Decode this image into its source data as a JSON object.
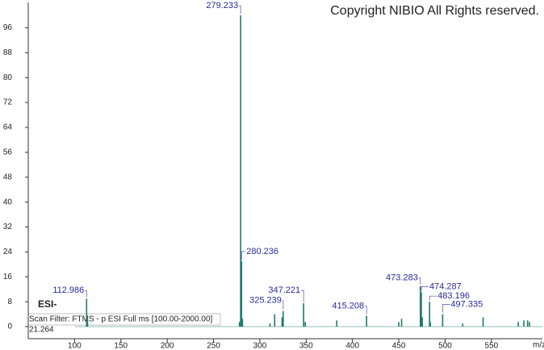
{
  "chart_data": {
    "type": "stick",
    "copyright": "Copyright NIBIO All Rights reserved.",
    "ionization": "ESI-",
    "scan_filter": "Scan Filter: FTMS - p ESI Full ms [100.00-2000.00]",
    "retention_time": "21.264",
    "xlabel": "m/z",
    "color": "#1f7a6c",
    "label_color": "#2a2a9a",
    "x": [
      112.986,
      279.233,
      280.236,
      325.239,
      347.221,
      415.208,
      473.283,
      474.287,
      483.196,
      497.335
    ],
    "values": [
      9,
      100,
      21,
      5,
      7.5,
      3.5,
      13,
      11,
      8,
      4
    ],
    "minor_x": [
      114,
      278,
      281.2,
      311,
      316,
      324,
      349,
      383,
      450,
      453,
      475.3,
      484,
      519,
      541,
      579,
      585,
      589,
      591
    ],
    "minor_values": [
      2,
      1.5,
      2.5,
      1,
      4,
      3,
      1.5,
      2,
      1.5,
      2.5,
      3,
      1.5,
      1,
      3,
      1.5,
      2,
      2,
      1.5
    ],
    "xlim": [
      50,
      605
    ],
    "ylim": [
      0,
      104
    ],
    "xticks": [
      100,
      150,
      200,
      250,
      300,
      350,
      400,
      450,
      500,
      550
    ],
    "yticks": [
      0,
      8,
      16,
      24,
      32,
      40,
      48,
      56,
      64,
      72,
      80,
      88,
      96
    ]
  }
}
